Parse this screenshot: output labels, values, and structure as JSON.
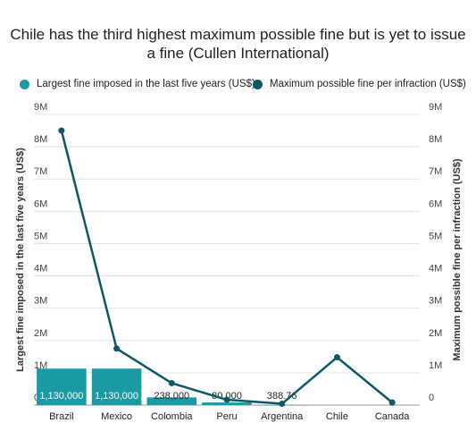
{
  "chart_data": {
    "type": "bar",
    "title": "Chile has the third highest maximum possible fine but is yet to issue a fine (Cullen International)",
    "categories": [
      "Brazil",
      "Mexico",
      "Colombia",
      "Peru",
      "Argentina",
      "Chile",
      "Canada"
    ],
    "series": [
      {
        "name": "Largest fine imposed in the last five years (US$)",
        "type": "bar",
        "axis": "left",
        "color": "#1a9ba3",
        "values": [
          1130000,
          1130000,
          238000,
          80000,
          388.76,
          0,
          0
        ],
        "labels": [
          "1,130,000",
          "1,130,000",
          "238,000",
          "80,000",
          "388.76",
          "",
          ""
        ]
      },
      {
        "name": "Maximum possible fine per infraction (US$)",
        "type": "line",
        "axis": "right",
        "color": "#0e5866",
        "values": [
          8500000,
          1750000,
          680000,
          165000,
          40000,
          1480000,
          80000
        ]
      }
    ],
    "ylabel": "Largest fine imposed in the last five years (US$)",
    "y2label": "Maximum possible fine per infraction (US$)",
    "ylim": [
      0,
      9000000
    ],
    "y2lim": [
      0,
      9000000
    ],
    "yticks": [
      "0",
      "1M",
      "2M",
      "3M",
      "4M",
      "5M",
      "6M",
      "7M",
      "8M",
      "9M"
    ],
    "grid": true,
    "legend_position": "top"
  }
}
